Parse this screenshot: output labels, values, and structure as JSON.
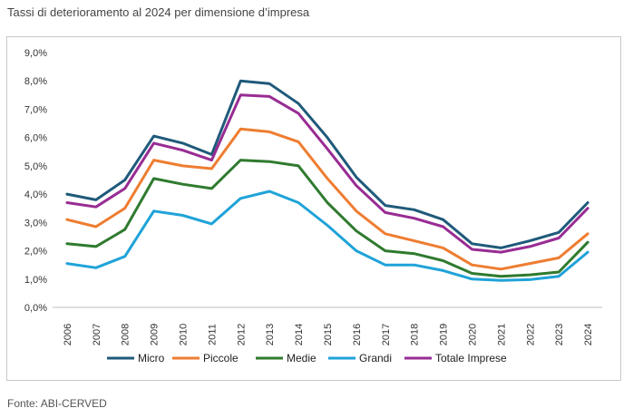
{
  "title": "Tassi di deterioramento al 2024 per dimensione d’impresa",
  "source": "Fonte: ABI-CERVED",
  "chart_data": {
    "type": "line",
    "title": "Tassi di deterioramento al 2024 per dimensione d’impresa",
    "xlabel": "",
    "ylabel": "",
    "ylim": [
      0,
      9
    ],
    "yticks": [
      0,
      1,
      2,
      3,
      4,
      5,
      6,
      7,
      8,
      9
    ],
    "ytick_labels": [
      "0,0%",
      "1,0%",
      "2,0%",
      "3,0%",
      "4,0%",
      "5,0%",
      "6,0%",
      "7,0%",
      "8,0%",
      "9,0%"
    ],
    "grid": false,
    "legend": "bottom",
    "x": [
      "2006",
      "2007",
      "2008",
      "2009",
      "2010",
      "2011",
      "2012",
      "2013",
      "2014",
      "2015",
      "2016",
      "2017",
      "2018",
      "2019",
      "2020",
      "2021",
      "2022",
      "2023",
      "2024"
    ],
    "series": [
      {
        "name": "Micro",
        "color": "#1f5a7a",
        "values": [
          4.0,
          3.8,
          4.5,
          6.05,
          5.8,
          5.4,
          8.0,
          7.9,
          7.2,
          6.0,
          4.6,
          3.6,
          3.45,
          3.1,
          2.25,
          2.1,
          2.35,
          2.65,
          3.7
        ]
      },
      {
        "name": "Piccole",
        "color": "#ee7d31",
        "values": [
          3.1,
          2.85,
          3.5,
          5.2,
          5.0,
          4.9,
          6.3,
          6.2,
          5.85,
          4.55,
          3.4,
          2.6,
          2.35,
          2.1,
          1.5,
          1.35,
          1.55,
          1.75,
          2.6
        ]
      },
      {
        "name": "Medie",
        "color": "#2f7a2f",
        "values": [
          2.25,
          2.15,
          2.75,
          4.55,
          4.35,
          4.2,
          5.2,
          5.15,
          5.0,
          3.7,
          2.7,
          2.0,
          1.9,
          1.65,
          1.2,
          1.1,
          1.15,
          1.25,
          2.3
        ]
      },
      {
        "name": "Grandi",
        "color": "#1fa3d8",
        "values": [
          1.55,
          1.4,
          1.8,
          3.4,
          3.25,
          2.95,
          3.85,
          4.1,
          3.7,
          2.9,
          2.0,
          1.5,
          1.5,
          1.3,
          1.0,
          0.95,
          0.98,
          1.1,
          1.95
        ]
      },
      {
        "name": "Totale Imprese",
        "color": "#982c93",
        "values": [
          3.7,
          3.55,
          4.2,
          5.8,
          5.55,
          5.2,
          7.5,
          7.45,
          6.85,
          5.6,
          4.3,
          3.35,
          3.15,
          2.85,
          2.05,
          1.95,
          2.15,
          2.45,
          3.5
        ]
      }
    ]
  }
}
